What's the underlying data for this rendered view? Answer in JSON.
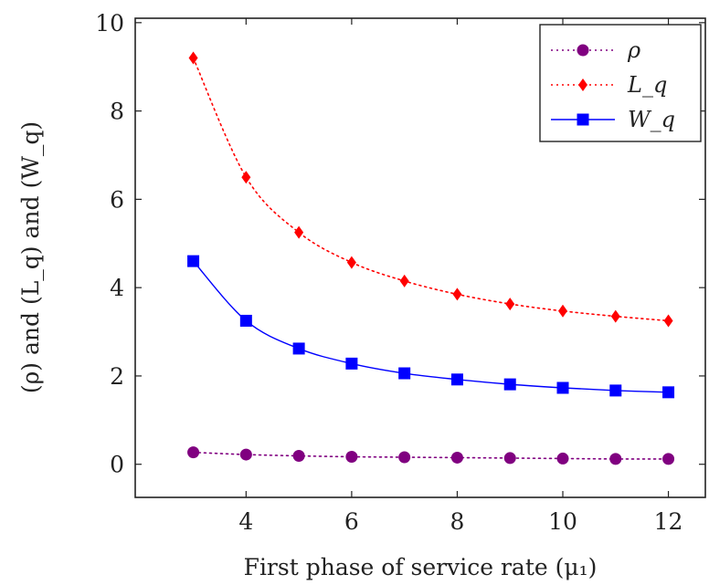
{
  "chart_data": {
    "type": "line",
    "title": "",
    "xlabel": "First phase of service rate (μ₁)",
    "ylabel": "(ρ) and (L_q) and (W_q)",
    "x": [
      3,
      4,
      5,
      6,
      7,
      8,
      9,
      10,
      11,
      12
    ],
    "xlim": [
      1.9,
      12.7
    ],
    "ylim": [
      -0.75,
      10.1
    ],
    "xticks": [
      4,
      6,
      8,
      10,
      12
    ],
    "yticks": [
      0,
      2,
      4,
      6,
      8,
      10
    ],
    "grid": false,
    "legend_position": "top-right",
    "series": [
      {
        "name": "ρ",
        "color": "#800080",
        "line_style": "dotted",
        "marker": "circle",
        "values": [
          0.27,
          0.22,
          0.19,
          0.17,
          0.16,
          0.15,
          0.14,
          0.13,
          0.12,
          0.12
        ]
      },
      {
        "name": "L_q",
        "color": "#ff0000",
        "line_style": "dotted",
        "marker": "diamond",
        "values": [
          9.2,
          6.5,
          5.25,
          4.57,
          4.15,
          3.85,
          3.63,
          3.47,
          3.35,
          3.25
        ]
      },
      {
        "name": "W_q",
        "color": "#0000ff",
        "line_style": "solid",
        "marker": "square",
        "values": [
          4.6,
          3.25,
          2.62,
          2.28,
          2.06,
          1.92,
          1.81,
          1.73,
          1.67,
          1.63
        ]
      }
    ]
  }
}
